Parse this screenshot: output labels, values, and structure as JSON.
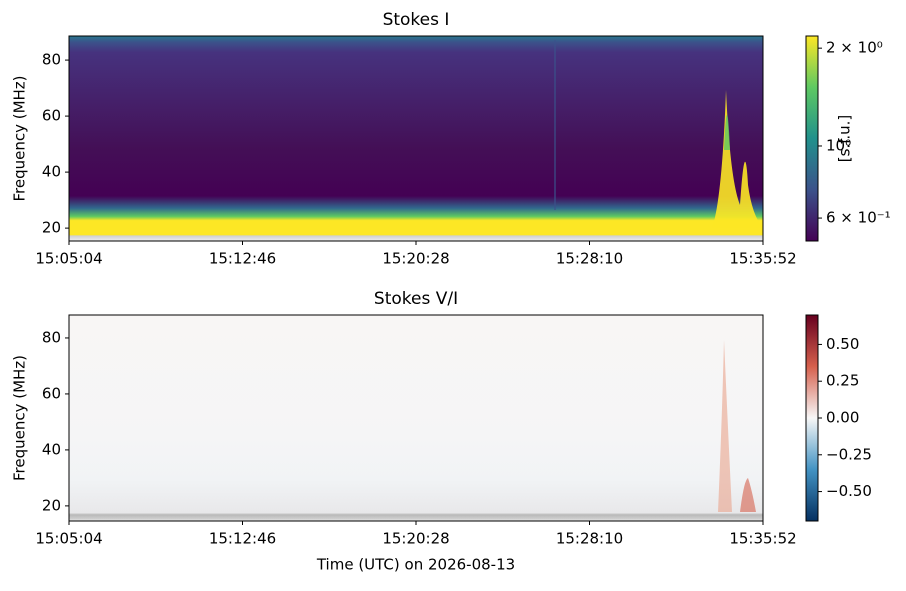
{
  "chart_data": [
    {
      "type": "heatmap",
      "title": "Stokes I",
      "ylabel": "Frequency (MHz)",
      "ylim": [
        15.4,
        88.6
      ],
      "yticks": [
        20,
        40,
        60,
        80
      ],
      "xticks": [
        "15:05:04",
        "15:12:46",
        "15:20:28",
        "15:28:10",
        "15:35:52"
      ],
      "colorbar": {
        "scale": "log",
        "label": "[s.f.u.]",
        "clim": [
          0.51,
          2.18
        ],
        "ticks": [
          {
            "value": 2,
            "label": "2 × 10⁰"
          },
          {
            "value": 1,
            "label": "10⁰"
          },
          {
            "value": 0.6,
            "label": "6 × 10⁻¹"
          }
        ],
        "colors": [
          "#440154",
          "#3b528b",
          "#21918c",
          "#5ec962",
          "#fde725"
        ]
      }
    },
    {
      "type": "heatmap",
      "title": "Stokes V/I",
      "ylabel": "Frequency (MHz)",
      "xlabel": "Time (UTC) on 2026-08-13",
      "ylim": [
        14.6,
        88.2
      ],
      "yticks": [
        20,
        40,
        60,
        80
      ],
      "xticks": [
        "15:05:04",
        "15:12:46",
        "15:20:28",
        "15:28:10",
        "15:35:52"
      ],
      "colorbar": {
        "scale": "linear",
        "clim": [
          -0.7,
          0.7
        ],
        "ticks": [
          {
            "value": 0.5,
            "label": "0.50"
          },
          {
            "value": 0.25,
            "label": "0.25"
          },
          {
            "value": 0,
            "label": "0.00"
          },
          {
            "value": -0.25,
            "label": "−0.25"
          },
          {
            "value": -0.5,
            "label": "−0.50"
          }
        ],
        "colors": [
          "#053061",
          "#4393c3",
          "#f7f7f7",
          "#d6604d",
          "#67001f"
        ]
      }
    }
  ]
}
